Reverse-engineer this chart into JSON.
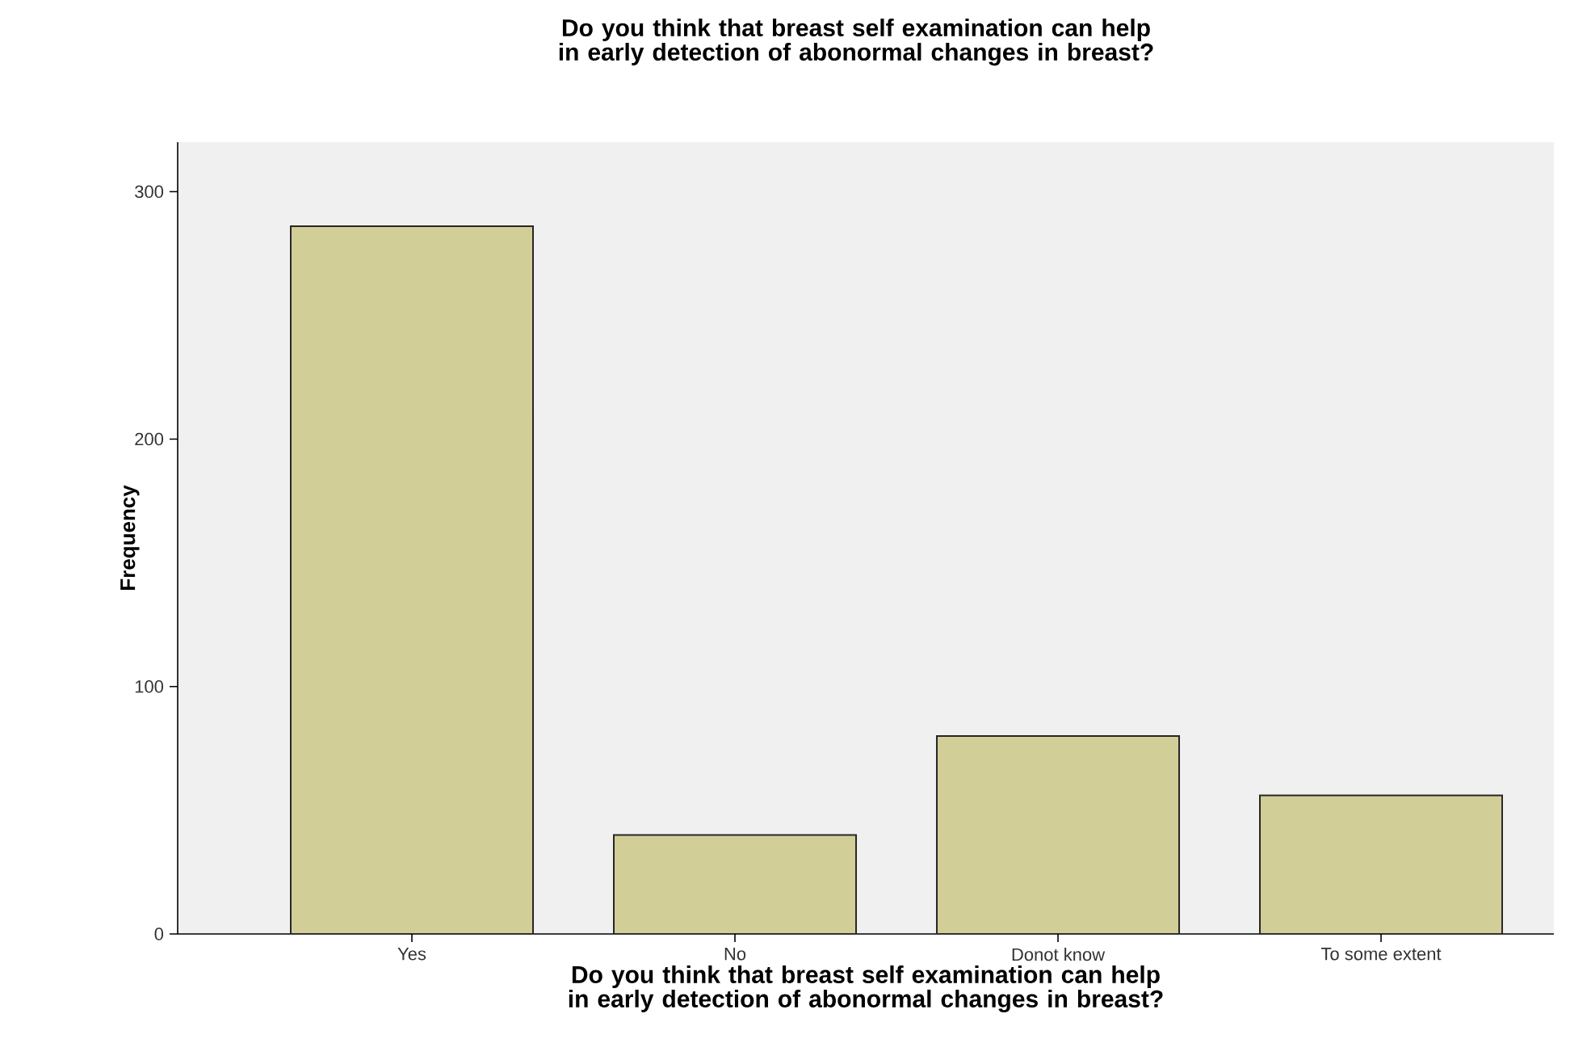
{
  "chart_data": {
    "type": "bar",
    "title": "Do you think that breast self examination can help in early detection of abonormal changes in breast?",
    "xlabel": "Do you think that breast self examination can help in early detection of abonormal changes in breast?",
    "ylabel": "Frequency",
    "categories": [
      "Yes",
      "No",
      "Donot know",
      "To some extent"
    ],
    "values": [
      286,
      40,
      80,
      56
    ],
    "color": "#d2ce98",
    "ylim": [
      0,
      320
    ],
    "yticks": [
      0,
      100,
      200,
      300
    ],
    "grid": false
  }
}
